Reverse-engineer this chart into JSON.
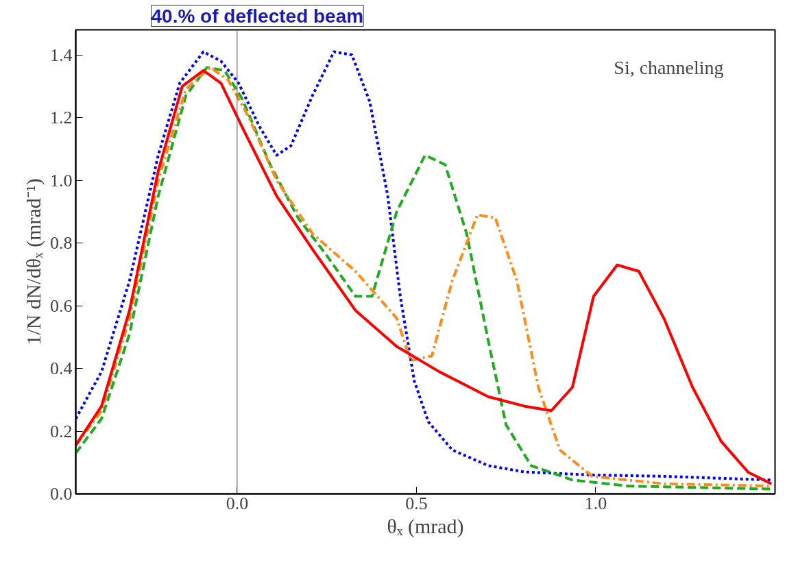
{
  "chart_data": {
    "type": "line",
    "title": "40.% of deflected beam",
    "xlabel": "θₓ (mrad)",
    "ylabel": "1/N dN/dθₓ (mrad⁻¹)",
    "annotations": [
      "Si, channeling"
    ],
    "xlim": [
      -0.45,
      1.5
    ],
    "ylim": [
      0,
      1.48
    ],
    "xticks": [
      {
        "value": 0,
        "label": "0.0"
      },
      {
        "value": 0.5,
        "label": "0.5"
      },
      {
        "value": 1,
        "label": "1.0"
      }
    ],
    "yticks": [
      {
        "value": 0,
        "label": "0.0"
      },
      {
        "value": 0.2,
        "label": "0.2"
      },
      {
        "value": 0.4,
        "label": "0.4"
      },
      {
        "value": 0.6,
        "label": "0.6"
      },
      {
        "value": 0.8,
        "label": "0.8"
      },
      {
        "value": 1,
        "label": "1.0"
      },
      {
        "value": 1.2,
        "label": "1.2"
      },
      {
        "value": 1.4,
        "label": "1.4"
      }
    ],
    "grid": false,
    "marker": "none",
    "ref_lines": [
      {
        "axis": "x",
        "value": 0,
        "color": "#555555",
        "line_style": "solid"
      }
    ],
    "series": [
      {
        "color": "#0000ff",
        "line_style": "dotted",
        "x": [
          -0.45,
          -0.378,
          -0.3,
          -0.22,
          -0.16,
          -0.094,
          -0.045,
          0.004,
          0.063,
          0.11,
          0.15,
          0.21,
          0.27,
          0.32,
          0.37,
          0.42,
          0.455,
          0.494,
          0.533,
          0.6,
          0.7,
          0.8,
          0.99,
          1.19,
          1.49
        ],
        "values": [
          0.24,
          0.39,
          0.68,
          1.08,
          1.31,
          1.41,
          1.38,
          1.31,
          1.17,
          1.08,
          1.11,
          1.27,
          1.41,
          1.4,
          1.25,
          0.95,
          0.63,
          0.36,
          0.23,
          0.14,
          0.09,
          0.07,
          0.06,
          0.056,
          0.044
        ]
      },
      {
        "color": "#22aa22",
        "line_style": "dashed",
        "x": [
          -0.45,
          -0.378,
          -0.3,
          -0.22,
          -0.143,
          -0.084,
          -0.035,
          0.014,
          0.092,
          0.17,
          0.25,
          0.33,
          0.376,
          0.445,
          0.524,
          0.58,
          0.64,
          0.7,
          0.75,
          0.82,
          0.935,
          1.09,
          1.49
        ],
        "values": [
          0.13,
          0.24,
          0.51,
          0.95,
          1.27,
          1.36,
          1.35,
          1.26,
          1.05,
          0.88,
          0.76,
          0.63,
          0.63,
          0.9,
          1.08,
          1.05,
          0.83,
          0.49,
          0.22,
          0.09,
          0.044,
          0.025,
          0.015
        ]
      },
      {
        "color": "#ff8c1a",
        "line_style": "dashdot",
        "x": [
          -0.45,
          -0.378,
          -0.3,
          -0.22,
          -0.143,
          -0.075,
          -0.025,
          0.033,
          0.11,
          0.21,
          0.33,
          0.445,
          0.484,
          0.543,
          0.6,
          0.67,
          0.72,
          0.78,
          0.84,
          0.9,
          0.99,
          1.19,
          1.49
        ],
        "values": [
          0.155,
          0.265,
          0.56,
          1.0,
          1.29,
          1.36,
          1.32,
          1.2,
          1.0,
          0.83,
          0.71,
          0.56,
          0.425,
          0.44,
          0.68,
          0.89,
          0.88,
          0.68,
          0.34,
          0.14,
          0.056,
          0.032,
          0.025
        ]
      },
      {
        "color": "#ff0000",
        "line_style": "solid",
        "x": [
          -0.45,
          -0.378,
          -0.3,
          -0.22,
          -0.153,
          -0.094,
          -0.045,
          0.014,
          0.11,
          0.21,
          0.33,
          0.445,
          0.563,
          0.7,
          0.8,
          0.876,
          0.935,
          0.994,
          1.06,
          1.12,
          1.19,
          1.27,
          1.35,
          1.425,
          1.49
        ],
        "values": [
          0.155,
          0.28,
          0.585,
          1.03,
          1.3,
          1.35,
          1.31,
          1.17,
          0.95,
          0.78,
          0.585,
          0.47,
          0.39,
          0.31,
          0.28,
          0.265,
          0.34,
          0.63,
          0.73,
          0.71,
          0.56,
          0.34,
          0.167,
          0.069,
          0.032
        ]
      }
    ]
  }
}
